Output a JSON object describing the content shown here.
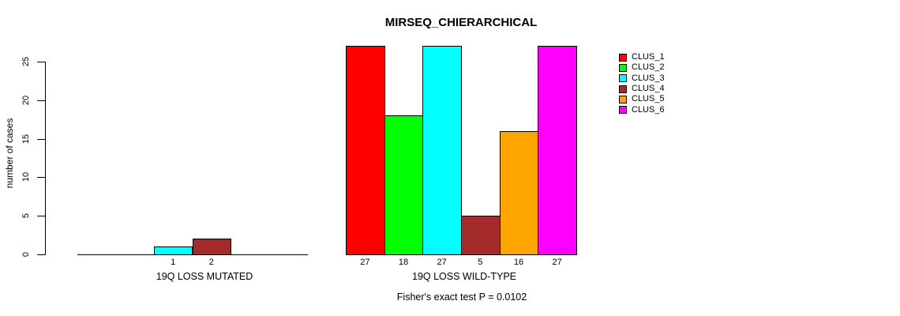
{
  "chart_data": {
    "type": "bar",
    "title": "MIRSEQ_CHIERARCHICAL",
    "ylabel": "number of cases",
    "yticks": [
      0,
      5,
      10,
      15,
      20,
      25
    ],
    "ylim": [
      0,
      27
    ],
    "grid": false,
    "legend_position": "right",
    "series": [
      {
        "name": "CLUS_1",
        "color": "#FF0000",
        "values": [
          0,
          27
        ]
      },
      {
        "name": "CLUS_2",
        "color": "#00FF00",
        "values": [
          0,
          18
        ]
      },
      {
        "name": "CLUS_3",
        "color": "#00FFFF",
        "values": [
          1,
          27
        ]
      },
      {
        "name": "CLUS_4",
        "color": "#A52A2A",
        "values": [
          2,
          5
        ]
      },
      {
        "name": "CLUS_5",
        "color": "#FFA500",
        "values": [
          0,
          16
        ]
      },
      {
        "name": "CLUS_6",
        "color": "#FF00FF",
        "values": [
          0,
          27
        ]
      }
    ],
    "categories": [
      "19Q LOSS MUTATED",
      "19Q LOSS WILD-TYPE"
    ],
    "groups": [
      {
        "label": "19Q LOSS MUTATED",
        "values": [
          0,
          0,
          1,
          2,
          0,
          0
        ],
        "bar_labels": [
          "",
          "",
          "1",
          "2",
          "",
          ""
        ]
      },
      {
        "label": "19Q LOSS WILD-TYPE",
        "values": [
          27,
          18,
          27,
          5,
          16,
          27
        ],
        "bar_labels": [
          "27",
          "18",
          "27",
          "5",
          "16",
          "27"
        ]
      }
    ],
    "annotation": "Fisher's exact test P = 0.0102"
  }
}
